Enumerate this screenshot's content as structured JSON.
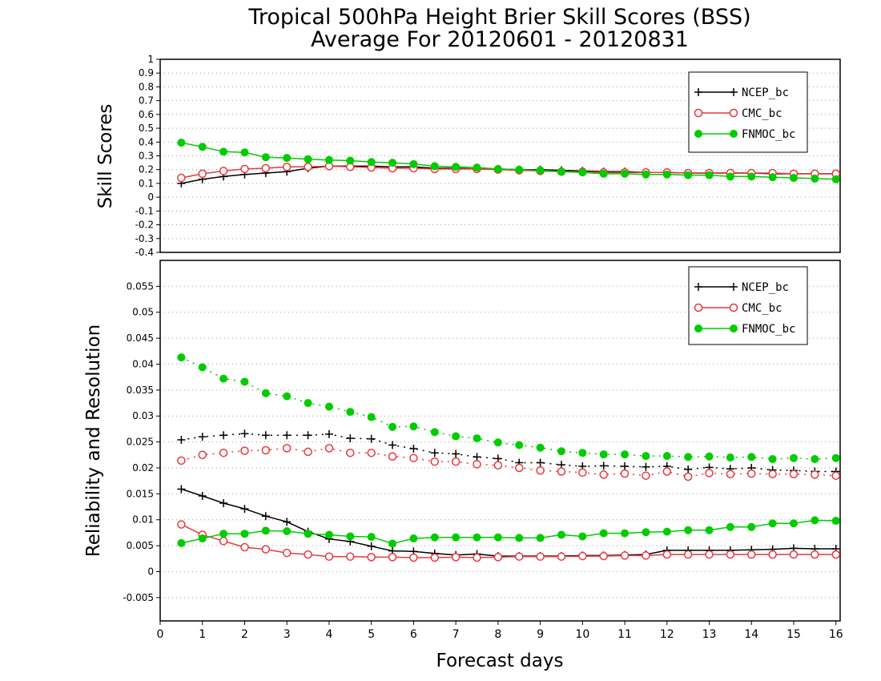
{
  "title_line1": "Tropical 500hPa Height Brier Skill Scores (BSS)",
  "title_line2": "Average For 20120601 - 20120831",
  "colors": {
    "NCEP_bc": "#000000",
    "CMC_bc": "#e8383d",
    "FNMOC_bc": "#00cc00"
  },
  "chart_data": [
    {
      "type": "line",
      "ylabel": "Skill Scores",
      "ylim": [
        -0.4,
        1
      ],
      "yticks": [
        "-0.4",
        "-0.3",
        "-0.2",
        "-0.1",
        "0",
        "0.1",
        "0.2",
        "0.3",
        "0.4",
        "0.5",
        "0.6",
        "0.7",
        "0.8",
        "0.9",
        "1"
      ],
      "xlim": [
        0,
        16.1
      ],
      "grid": true,
      "legend": "top-right",
      "x": [
        0.5,
        1,
        1.5,
        2,
        2.5,
        3,
        3.5,
        4,
        4.5,
        5,
        5.5,
        6,
        6.5,
        7,
        7.5,
        8,
        8.5,
        9,
        9.5,
        10,
        10.5,
        11,
        11.5,
        12,
        12.5,
        13,
        13.5,
        14,
        14.5,
        15,
        15.5,
        16
      ],
      "series": [
        {
          "name": "NCEP_bc",
          "marker": "plus",
          "style": "solid",
          "values": [
            0.1,
            0.13,
            0.15,
            0.165,
            0.175,
            0.185,
            0.21,
            0.225,
            0.225,
            0.225,
            0.22,
            0.22,
            0.21,
            0.21,
            0.205,
            0.205,
            0.2,
            0.2,
            0.195,
            0.19,
            0.185,
            0.185,
            0.18,
            0.18,
            0.175,
            0.175,
            0.175,
            0.175,
            0.17,
            0.17,
            0.17,
            0.17
          ]
        },
        {
          "name": "CMC_bc",
          "marker": "circle",
          "style": "solid",
          "values": [
            0.14,
            0.17,
            0.19,
            0.205,
            0.21,
            0.22,
            0.22,
            0.225,
            0.22,
            0.215,
            0.21,
            0.21,
            0.205,
            0.205,
            0.205,
            0.2,
            0.195,
            0.19,
            0.185,
            0.185,
            0.18,
            0.18,
            0.18,
            0.18,
            0.175,
            0.175,
            0.175,
            0.175,
            0.175,
            0.17,
            0.17,
            0.17
          ]
        },
        {
          "name": "FNMOC_bc",
          "marker": "dot",
          "style": "solid",
          "values": [
            0.395,
            0.365,
            0.33,
            0.325,
            0.29,
            0.285,
            0.275,
            0.27,
            0.265,
            0.255,
            0.25,
            0.24,
            0.225,
            0.22,
            0.215,
            0.205,
            0.2,
            0.195,
            0.185,
            0.18,
            0.17,
            0.17,
            0.165,
            0.165,
            0.16,
            0.16,
            0.15,
            0.15,
            0.145,
            0.14,
            0.135,
            0.13
          ]
        }
      ]
    },
    {
      "type": "line",
      "ylabel": "Reliability and Resolution",
      "xlabel": "Forecast days",
      "ylim": [
        -0.0095,
        0.06
      ],
      "yticks": [
        "-0.005",
        "0",
        "0.005",
        "0.01",
        "0.015",
        "0.02",
        "0.025",
        "0.03",
        "0.035",
        "0.04",
        "0.045",
        "0.05",
        "0.055"
      ],
      "xlim": [
        0,
        16.1
      ],
      "xticks": [
        "0",
        "1",
        "2",
        "3",
        "4",
        "5",
        "6",
        "7",
        "8",
        "9",
        "10",
        "11",
        "12",
        "13",
        "14",
        "15",
        "16"
      ],
      "grid": true,
      "legend": "top-right",
      "x": [
        0.5,
        1,
        1.5,
        2,
        2.5,
        3,
        3.5,
        4,
        4.5,
        5,
        5.5,
        6,
        6.5,
        7,
        7.5,
        8,
        8.5,
        9,
        9.5,
        10,
        10.5,
        11,
        11.5,
        12,
        12.5,
        13,
        13.5,
        14,
        14.5,
        15,
        15.5,
        16
      ],
      "series": [
        {
          "name": "NCEP_bc",
          "role": "resolution",
          "marker": "plus",
          "style": "dotted",
          "values": [
            0.0254,
            0.026,
            0.0263,
            0.0266,
            0.0263,
            0.0263,
            0.0263,
            0.0265,
            0.0257,
            0.0256,
            0.0244,
            0.0237,
            0.0229,
            0.0227,
            0.0221,
            0.0218,
            0.021,
            0.021,
            0.0206,
            0.0203,
            0.0204,
            0.0203,
            0.0202,
            0.0203,
            0.0197,
            0.0201,
            0.0198,
            0.02,
            0.0196,
            0.0195,
            0.0193,
            0.0193
          ]
        },
        {
          "name": "CMC_bc",
          "role": "resolution",
          "marker": "circle",
          "style": "dotted",
          "values": [
            0.0214,
            0.0225,
            0.0229,
            0.0233,
            0.0234,
            0.0238,
            0.0231,
            0.0238,
            0.0229,
            0.0229,
            0.0222,
            0.0219,
            0.0212,
            0.0212,
            0.0207,
            0.0205,
            0.02,
            0.0195,
            0.0193,
            0.0191,
            0.0187,
            0.0189,
            0.0185,
            0.0193,
            0.0183,
            0.019,
            0.0188,
            0.0189,
            0.0188,
            0.0188,
            0.0187,
            0.0185
          ]
        },
        {
          "name": "FNMOC_bc",
          "role": "resolution",
          "marker": "dot",
          "style": "dotted",
          "values": [
            0.0413,
            0.0394,
            0.0372,
            0.0366,
            0.0344,
            0.0338,
            0.0325,
            0.0318,
            0.0308,
            0.0298,
            0.0279,
            0.028,
            0.0269,
            0.0261,
            0.0257,
            0.0249,
            0.0244,
            0.0239,
            0.0232,
            0.0229,
            0.0226,
            0.0226,
            0.0223,
            0.0223,
            0.0221,
            0.0222,
            0.022,
            0.0221,
            0.0217,
            0.0219,
            0.0217,
            0.0219
          ]
        },
        {
          "name": "NCEP_bc",
          "role": "reliability",
          "marker": "plus",
          "style": "solid",
          "values": [
            0.0159,
            0.0146,
            0.0132,
            0.0121,
            0.0107,
            0.0096,
            0.0077,
            0.0063,
            0.0058,
            0.0049,
            0.004,
            0.0039,
            0.0035,
            0.0032,
            0.0034,
            0.003,
            0.003,
            0.003,
            0.003,
            0.0031,
            0.0031,
            0.0032,
            0.0033,
            0.0041,
            0.0041,
            0.0041,
            0.0041,
            0.0042,
            0.0043,
            0.0045,
            0.0044,
            0.0044
          ]
        },
        {
          "name": "CMC_bc",
          "role": "reliability",
          "marker": "circle",
          "style": "solid",
          "values": [
            0.0091,
            0.0071,
            0.0059,
            0.0047,
            0.0043,
            0.0036,
            0.0033,
            0.0029,
            0.0029,
            0.0028,
            0.0028,
            0.0027,
            0.0027,
            0.0028,
            0.0027,
            0.0028,
            0.0029,
            0.0029,
            0.0029,
            0.003,
            0.003,
            0.0031,
            0.0031,
            0.0033,
            0.0033,
            0.0033,
            0.0033,
            0.0033,
            0.0033,
            0.0033,
            0.0033,
            0.0033
          ]
        },
        {
          "name": "FNMOC_bc",
          "role": "reliability",
          "marker": "dot",
          "style": "solid",
          "values": [
            0.0055,
            0.0064,
            0.0073,
            0.0073,
            0.0079,
            0.0078,
            0.0073,
            0.0071,
            0.0068,
            0.0067,
            0.0054,
            0.0064,
            0.0066,
            0.0066,
            0.0066,
            0.0066,
            0.0065,
            0.0065,
            0.0071,
            0.0068,
            0.0074,
            0.0074,
            0.0076,
            0.0077,
            0.008,
            0.008,
            0.0086,
            0.0086,
            0.0093,
            0.0093,
            0.0099,
            0.0098
          ]
        }
      ]
    }
  ]
}
